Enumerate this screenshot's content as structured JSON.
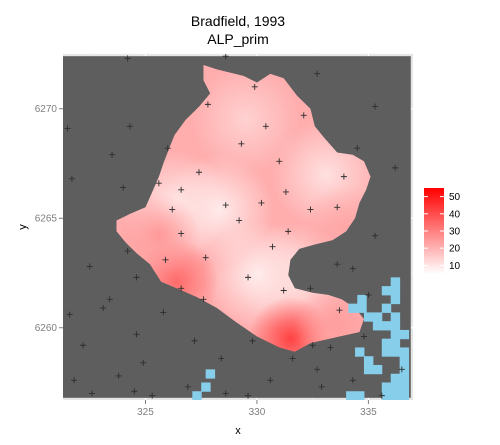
{
  "chart_data": {
    "type": "heatmap",
    "title": "Bradfield, 1993",
    "subtitle": "ALP_prim",
    "xlabel": "x",
    "ylabel": "y",
    "xlim": [
      321.3,
      337.0
    ],
    "ylim": [
      6256.7,
      6272.5
    ],
    "xticks": [
      325,
      330,
      335
    ],
    "yticks": [
      6260,
      6265,
      6270
    ],
    "grid": true,
    "legend": {
      "position": "right",
      "scale_min": 5,
      "scale_max": 55,
      "ticks": [
        10,
        20,
        30,
        40,
        50
      ],
      "low_color": "#ffffff",
      "high_color": "#ff0000"
    },
    "colors": {
      "panel_background": "#e5e5e5",
      "gridline": "#f2f2f2",
      "no_data_fill": "#5e5e5e",
      "water_fill": "#87ceeb",
      "point_marker": "#2e2e2e"
    },
    "region_outline": [
      [
        327.6,
        6272.0
      ],
      [
        328.2,
        6271.8
      ],
      [
        329.4,
        6271.5
      ],
      [
        330.0,
        6271.2
      ],
      [
        330.6,
        6271.6
      ],
      [
        331.2,
        6271.4
      ],
      [
        331.8,
        6270.6
      ],
      [
        332.4,
        6270.0
      ],
      [
        332.6,
        6269.2
      ],
      [
        333.0,
        6268.7
      ],
      [
        333.6,
        6268.0
      ],
      [
        334.3,
        6267.9
      ],
      [
        334.8,
        6267.6
      ],
      [
        335.1,
        6266.9
      ],
      [
        334.9,
        6266.3
      ],
      [
        334.6,
        6265.7
      ],
      [
        334.4,
        6265.0
      ],
      [
        334.0,
        6264.4
      ],
      [
        333.4,
        6264.0
      ],
      [
        332.6,
        6263.8
      ],
      [
        331.9,
        6263.6
      ],
      [
        331.5,
        6263.1
      ],
      [
        331.4,
        6262.4
      ],
      [
        331.7,
        6261.8
      ],
      [
        332.5,
        6261.6
      ],
      [
        333.2,
        6261.5
      ],
      [
        333.8,
        6261.3
      ],
      [
        334.4,
        6260.9
      ],
      [
        334.8,
        6260.4
      ],
      [
        334.6,
        6259.8
      ],
      [
        333.7,
        6259.6
      ],
      [
        332.4,
        6259.3
      ],
      [
        331.7,
        6258.9
      ],
      [
        331.0,
        6259.1
      ],
      [
        330.0,
        6259.6
      ],
      [
        329.0,
        6260.3
      ],
      [
        328.2,
        6260.9
      ],
      [
        327.3,
        6261.4
      ],
      [
        326.4,
        6261.8
      ],
      [
        325.7,
        6262.1
      ],
      [
        325.2,
        6262.9
      ],
      [
        324.6,
        6263.4
      ],
      [
        324.1,
        6263.9
      ],
      [
        323.7,
        6264.4
      ],
      [
        323.7,
        6264.9
      ],
      [
        324.3,
        6265.2
      ],
      [
        325.0,
        6265.5
      ],
      [
        325.3,
        6266.2
      ],
      [
        325.6,
        6266.9
      ],
      [
        325.8,
        6267.5
      ],
      [
        326.1,
        6268.3
      ],
      [
        326.3,
        6268.8
      ],
      [
        326.8,
        6269.5
      ],
      [
        327.4,
        6270.1
      ],
      [
        327.9,
        6270.7
      ],
      [
        327.6,
        6271.3
      ]
    ],
    "hotspots": [
      {
        "x": 330.1,
        "y": 6262.4,
        "value": 8
      },
      {
        "x": 328.3,
        "y": 6265.4,
        "value": 9
      },
      {
        "x": 326.3,
        "y": 6265.6,
        "value": 10
      },
      {
        "x": 331.8,
        "y": 6262.3,
        "value": 11
      },
      {
        "x": 333.1,
        "y": 6267.0,
        "value": 11
      },
      {
        "x": 329.5,
        "y": 6269.5,
        "value": 14
      },
      {
        "x": 326.4,
        "y": 6262.1,
        "value": 34
      },
      {
        "x": 331.5,
        "y": 6259.5,
        "value": 42
      },
      {
        "x": 325.6,
        "y": 6264.2,
        "value": 25
      },
      {
        "x": 333.6,
        "y": 6260.1,
        "value": 24
      },
      {
        "x": 333.9,
        "y": 6264.6,
        "value": 22
      }
    ],
    "base_value": 21,
    "water_cells": [
      [
        334.3,
        6260.9
      ],
      [
        334.7,
        6260.9
      ],
      [
        334.7,
        6261.3
      ],
      [
        335.0,
        6260.5
      ],
      [
        335.4,
        6260.5
      ],
      [
        335.4,
        6260.1
      ],
      [
        335.8,
        6260.1
      ],
      [
        336.2,
        6260.1
      ],
      [
        336.2,
        6259.7
      ],
      [
        336.2,
        6259.3
      ],
      [
        336.2,
        6258.9
      ],
      [
        336.6,
        6258.9
      ],
      [
        336.6,
        6258.5
      ],
      [
        336.6,
        6258.1
      ],
      [
        336.6,
        6257.7
      ],
      [
        336.2,
        6257.7
      ],
      [
        335.8,
        6257.3
      ],
      [
        336.2,
        6257.3
      ],
      [
        336.6,
        6257.3
      ],
      [
        336.2,
        6256.9
      ],
      [
        336.6,
        6256.9
      ],
      [
        335.8,
        6256.9
      ],
      [
        334.6,
        6258.9
      ],
      [
        335.0,
        6258.5
      ],
      [
        335.4,
        6258.1
      ],
      [
        335.0,
        6258.1
      ],
      [
        335.8,
        6258.9
      ],
      [
        335.8,
        6259.3
      ],
      [
        336.6,
        6259.7
      ],
      [
        336.2,
        6260.5
      ],
      [
        335.8,
        6260.9
      ],
      [
        336.2,
        6261.3
      ],
      [
        336.2,
        6261.7
      ],
      [
        336.2,
        6262.1
      ],
      [
        335.8,
        6261.7
      ],
      [
        334.2,
        6256.9
      ],
      [
        334.6,
        6256.9
      ],
      [
        327.3,
        6256.9
      ],
      [
        327.7,
        6257.3
      ],
      [
        327.9,
        6257.9
      ]
    ],
    "points": [
      [
        324.2,
        6272.3
      ],
      [
        321.5,
        6269.1
      ],
      [
        324.3,
        6269.2
      ],
      [
        327.8,
        6270.2
      ],
      [
        328.6,
        6272.4
      ],
      [
        332.7,
        6271.6
      ],
      [
        335.3,
        6270.1
      ],
      [
        321.7,
        6266.8
      ],
      [
        323.5,
        6267.9
      ],
      [
        324.0,
        6266.4
      ],
      [
        325.6,
        6266.6
      ],
      [
        326.6,
        6266.3
      ],
      [
        327.4,
        6267.1
      ],
      [
        329.3,
        6268.4
      ],
      [
        330.4,
        6269.2
      ],
      [
        332.1,
        6269.7
      ],
      [
        334.5,
        6268.2
      ],
      [
        336.2,
        6267.3
      ],
      [
        326.6,
        6264.3
      ],
      [
        327.7,
        6263.2
      ],
      [
        329.2,
        6264.9
      ],
      [
        330.7,
        6263.7
      ],
      [
        332.4,
        6265.4
      ],
      [
        333.6,
        6265.5
      ],
      [
        335.3,
        6264.2
      ],
      [
        326.2,
        6265.4
      ],
      [
        328.6,
        6265.6
      ],
      [
        330.2,
        6265.7
      ],
      [
        331.3,
        6266.2
      ],
      [
        324.2,
        6263.5
      ],
      [
        322.5,
        6262.8
      ],
      [
        323.4,
        6261.3
      ],
      [
        324.6,
        6262.3
      ],
      [
        326.6,
        6261.8
      ],
      [
        327.6,
        6261.3
      ],
      [
        329.6,
        6262.3
      ],
      [
        331.2,
        6261.7
      ],
      [
        332.4,
        6261.8
      ],
      [
        333.6,
        6262.9
      ],
      [
        334.3,
        6262.7
      ],
      [
        321.6,
        6260.6
      ],
      [
        322.2,
        6259.2
      ],
      [
        323.1,
        6260.9
      ],
      [
        324.6,
        6259.7
      ],
      [
        325.8,
        6260.7
      ],
      [
        327.2,
        6259.4
      ],
      [
        328.4,
        6258.6
      ],
      [
        329.8,
        6259.4
      ],
      [
        331.6,
        6258.6
      ],
      [
        332.5,
        6259.2
      ],
      [
        333.3,
        6259.1
      ],
      [
        334.8,
        6259.6
      ],
      [
        336.5,
        6258.1
      ],
      [
        321.8,
        6257.6
      ],
      [
        322.6,
        6257.0
      ],
      [
        323.8,
        6257.8
      ],
      [
        324.5,
        6257.1
      ],
      [
        325.3,
        6256.9
      ],
      [
        326.9,
        6257.3
      ],
      [
        328.6,
        6257.0
      ],
      [
        330.6,
        6257.6
      ],
      [
        332.9,
        6257.3
      ],
      [
        334.3,
        6257.6
      ],
      [
        335.6,
        6256.9
      ],
      [
        324.9,
        6258.4
      ],
      [
        329.6,
        6256.9
      ],
      [
        332.7,
        6258.1
      ],
      [
        335.0,
        6261.5
      ],
      [
        333.7,
        6260.8
      ],
      [
        326.0,
        6268.2
      ],
      [
        329.9,
        6271.0
      ],
      [
        331.0,
        6267.6
      ],
      [
        333.9,
        6266.9
      ],
      [
        325.9,
        6263.1
      ],
      [
        331.4,
        6264.4
      ]
    ]
  }
}
